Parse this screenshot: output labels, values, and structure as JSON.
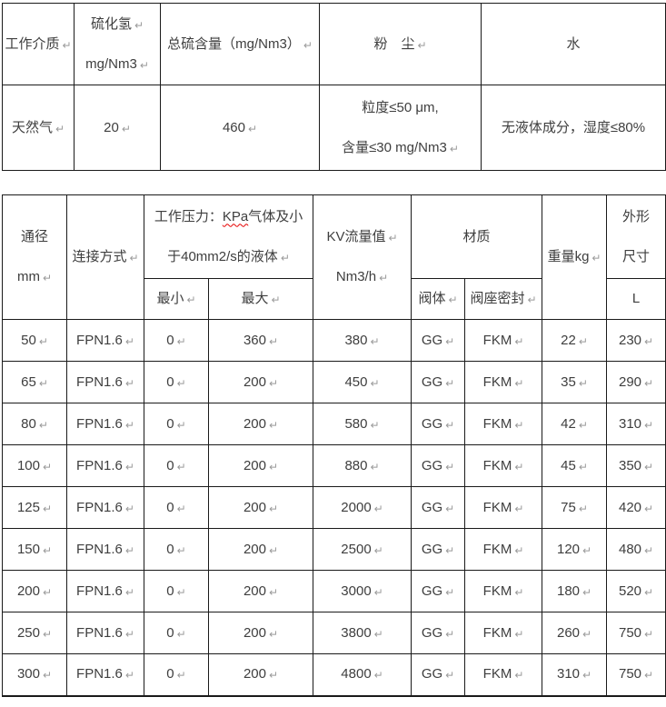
{
  "pilcrow": "↵",
  "colors": {
    "text": "#3e3e3e",
    "grid": "#1a1a1a",
    "paragraph_mark": "#9a9a9a",
    "spellcheck_underline": "#e60000"
  },
  "media_table": {
    "header_cells": [
      {
        "dn": "working-medium-header",
        "lines": [
          {
            "t": "工作介质",
            "mark": true
          }
        ]
      },
      {
        "dn": "h2s-header",
        "lines": [
          {
            "t": "硫化氢",
            "mark": true
          },
          {
            "t": "mg/Nm3",
            "mark": true
          }
        ]
      },
      {
        "dn": "total-sulfur-header",
        "lines": [
          {
            "t": "总硫含量（mg/Nm3）",
            "mark": true
          }
        ]
      },
      {
        "dn": "dust-header",
        "lines": [
          {
            "t": "粉　尘",
            "mark": true
          }
        ]
      },
      {
        "dn": "water-header",
        "lines": [
          {
            "t": "水"
          }
        ]
      }
    ],
    "data_cells": [
      {
        "dn": "medium-value",
        "lines": [
          {
            "t": "天然气",
            "mark": true
          }
        ]
      },
      {
        "dn": "h2s-value",
        "lines": [
          {
            "t": "20",
            "mark": true
          }
        ]
      },
      {
        "dn": "total-sulfur-value",
        "lines": [
          {
            "t": "460",
            "mark": true
          }
        ]
      },
      {
        "dn": "dust-value",
        "lines": [
          {
            "t": "粒度≤50 μm,"
          },
          {
            "t": "含量≤30 mg/Nm3",
            "mark": true
          }
        ]
      },
      {
        "dn": "water-value",
        "lines": [
          {
            "t": "无液体成分，湿度≤80%"
          }
        ]
      }
    ]
  },
  "valve_table": {
    "header_row1": [
      {
        "rs": 2,
        "dn": "diameter-header",
        "lines": [
          {
            "t": "通径"
          },
          {
            "t": "mm",
            "mark": true
          }
        ]
      },
      {
        "rs": 2,
        "dn": "connection-header",
        "lines": [
          {
            "t": "连接方式",
            "mark": true
          }
        ]
      },
      {
        "cs": 2,
        "dn": "working-pressure-header",
        "lines": [
          {
            "segs": [
              {
                "t": "工作压力："
              },
              {
                "t": "KPa",
                "wavy": true
              },
              {
                "t": "气体及小"
              }
            ]
          },
          {
            "t": "于40mm2/s的液体",
            "mark": true
          }
        ]
      },
      {
        "rs": 2,
        "dn": "kv-flow-header",
        "lines": [
          {
            "t": "KV流量值",
            "mark": true
          },
          {
            "t": "Nm3/h",
            "mark": true
          }
        ]
      },
      {
        "cs": 2,
        "dn": "material-header",
        "lines": [
          {
            "t": "材质"
          }
        ]
      },
      {
        "rs": 2,
        "dn": "weight-header",
        "lines": [
          {
            "t": "重量kg",
            "mark": true
          }
        ]
      },
      {
        "dn": "outline-dimension-header",
        "lines": [
          {
            "t": "外形"
          },
          {
            "t": "尺寸"
          }
        ]
      }
    ],
    "header_row2": [
      {
        "dn": "pressure-min-header",
        "lines": [
          {
            "t": "最小",
            "mark": true
          }
        ]
      },
      {
        "dn": "pressure-max-header",
        "lines": [
          {
            "t": "最大",
            "mark": true
          }
        ]
      },
      {
        "dn": "valve-body-header",
        "lines": [
          {
            "t": "阀体",
            "mark": true
          }
        ]
      },
      {
        "dn": "seat-seal-header",
        "lines": [
          {
            "t": "阀座密封",
            "mark": true
          }
        ]
      },
      {
        "dn": "length-header",
        "lines": [
          {
            "t": "L"
          }
        ]
      }
    ],
    "rows": [
      [
        "50",
        "FPN1.6",
        "0",
        "360",
        "380",
        "GG",
        "FKM",
        "22",
        "230"
      ],
      [
        "65",
        "FPN1.6",
        "0",
        "200",
        "450",
        "GG",
        "FKM",
        "35",
        "290"
      ],
      [
        "80",
        "FPN1.6",
        "0",
        "200",
        "580",
        "GG",
        "FKM",
        "42",
        "310"
      ],
      [
        "100",
        "FPN1.6",
        "0",
        "200",
        "880",
        "GG",
        "FKM",
        "45",
        "350"
      ],
      [
        "125",
        "FPN1.6",
        "0",
        "200",
        "2000",
        "GG",
        "FKM",
        "75",
        "420"
      ],
      [
        "150",
        "FPN1.6",
        "0",
        "200",
        "2500",
        "GG",
        "FKM",
        "120",
        "480"
      ],
      [
        "200",
        "FPN1.6",
        "0",
        "200",
        "3000",
        "GG",
        "FKM",
        "180",
        "520"
      ],
      [
        "250",
        "FPN1.6",
        "0",
        "200",
        "3800",
        "GG",
        "FKM",
        "260",
        "750"
      ],
      [
        "300",
        "FPN1.6",
        "0",
        "200",
        "4800",
        "GG",
        "FKM",
        "310",
        "750"
      ]
    ]
  }
}
